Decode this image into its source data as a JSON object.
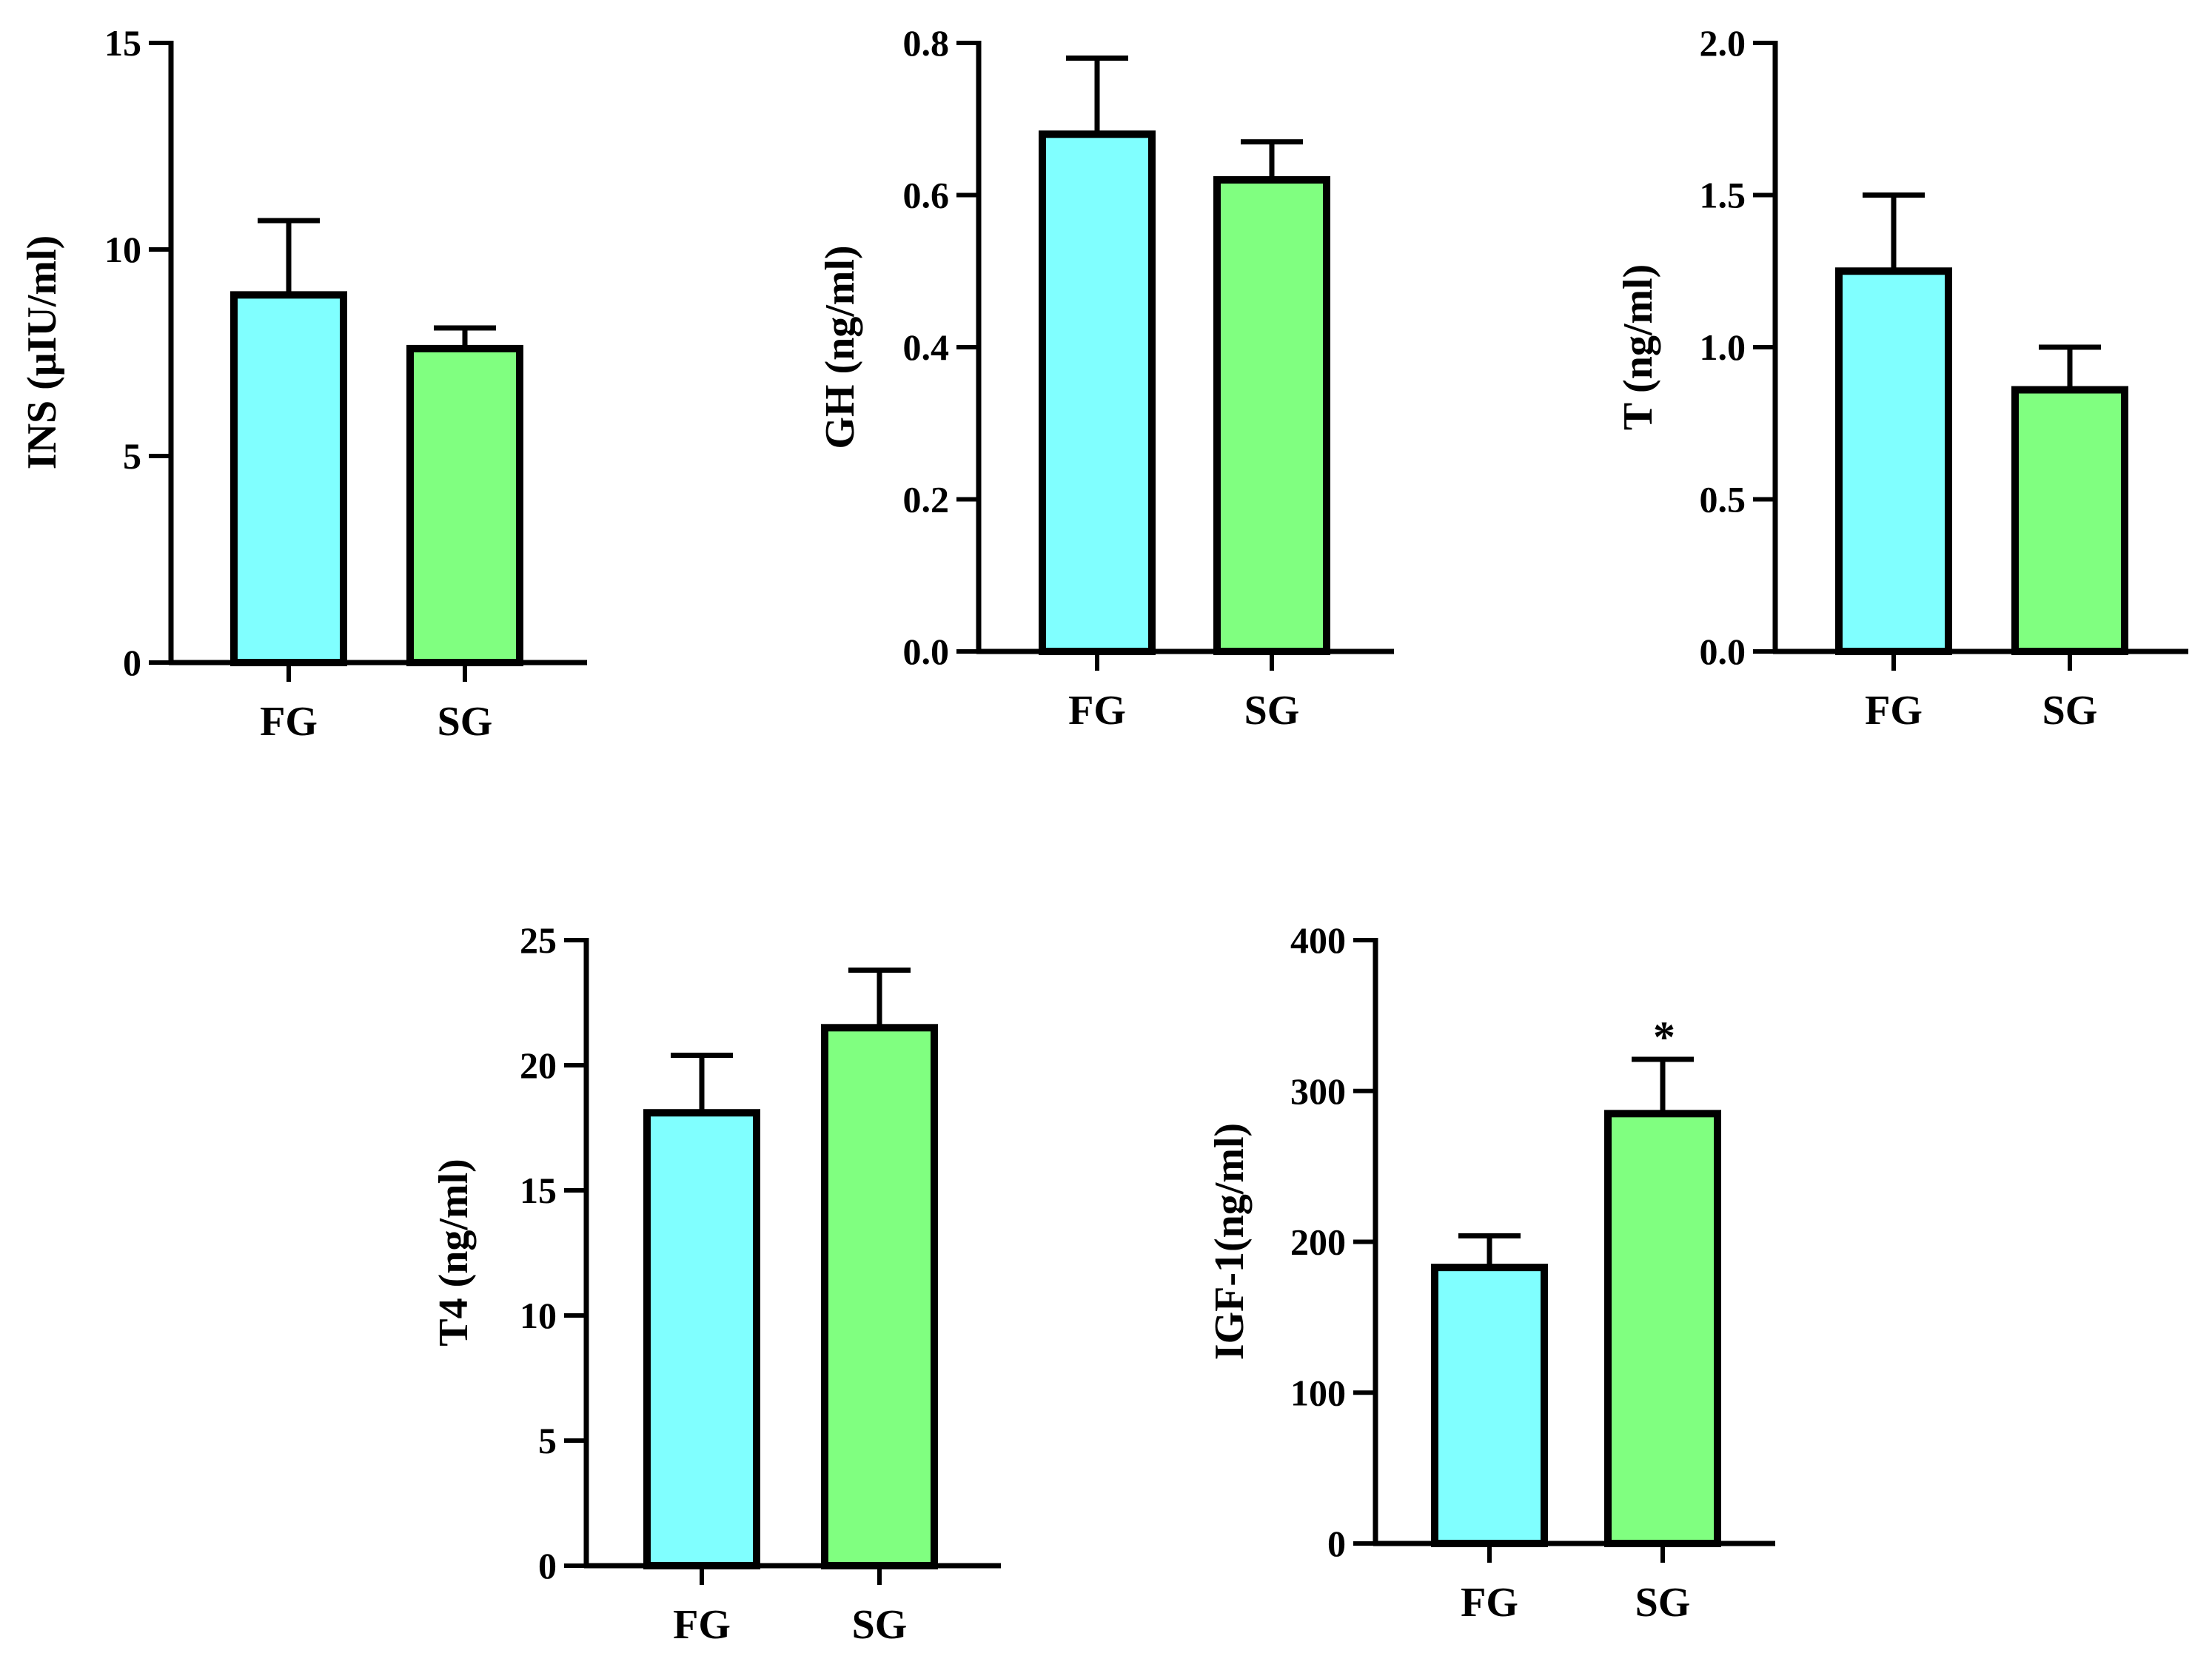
{
  "colors": {
    "FG": "#80ffff",
    "SG": "#80ff80",
    "stroke": "#000000"
  },
  "chart_data": [
    {
      "type": "bar",
      "ylabel": "INS (μIU/ml)",
      "categories": [
        "FG",
        "SG"
      ],
      "values": [
        8.9,
        7.6
      ],
      "errors": [
        1.8,
        0.5
      ],
      "ylim": [
        0,
        15
      ],
      "yticks": [
        0,
        5,
        10,
        15
      ],
      "ytick_labels": [
        "0",
        "5",
        "10",
        "15"
      ],
      "annotations": [
        "",
        ""
      ]
    },
    {
      "type": "bar",
      "ylabel": "GH (ng/ml)",
      "categories": [
        "FG",
        "SG"
      ],
      "values": [
        0.68,
        0.62
      ],
      "errors": [
        0.1,
        0.05
      ],
      "ylim": [
        0,
        0.8
      ],
      "yticks": [
        0,
        0.2,
        0.4,
        0.6,
        0.8
      ],
      "ytick_labels": [
        "0.0",
        "0.2",
        "0.4",
        "0.6",
        "0.8"
      ],
      "annotations": [
        "",
        ""
      ]
    },
    {
      "type": "bar",
      "ylabel": "T (ng/ml)",
      "categories": [
        "FG",
        "SG"
      ],
      "values": [
        1.25,
        0.86
      ],
      "errors": [
        0.25,
        0.14
      ],
      "ylim": [
        0,
        2.0
      ],
      "yticks": [
        0,
        0.5,
        1.0,
        1.5,
        2.0
      ],
      "ytick_labels": [
        "0.0",
        "0.5",
        "1.0",
        "1.5",
        "2.0"
      ],
      "annotations": [
        "",
        ""
      ]
    },
    {
      "type": "bar",
      "ylabel": "T4 (ng/ml)",
      "categories": [
        "FG",
        "SG"
      ],
      "values": [
        18.1,
        21.5
      ],
      "errors": [
        2.3,
        2.3
      ],
      "ylim": [
        0,
        25
      ],
      "yticks": [
        0,
        5,
        10,
        15,
        20,
        25
      ],
      "ytick_labels": [
        "0",
        "5",
        "10",
        "15",
        "20",
        "25"
      ],
      "annotations": [
        "",
        ""
      ]
    },
    {
      "type": "bar",
      "ylabel": "IGF-1(ng/ml)",
      "categories": [
        "FG",
        "SG"
      ],
      "values": [
        183,
        285
      ],
      "errors": [
        21,
        36
      ],
      "ylim": [
        0,
        400
      ],
      "yticks": [
        0,
        100,
        200,
        300,
        400
      ],
      "ytick_labels": [
        "0",
        "100",
        "200",
        "300",
        "400"
      ],
      "annotations": [
        "",
        "*"
      ]
    }
  ]
}
